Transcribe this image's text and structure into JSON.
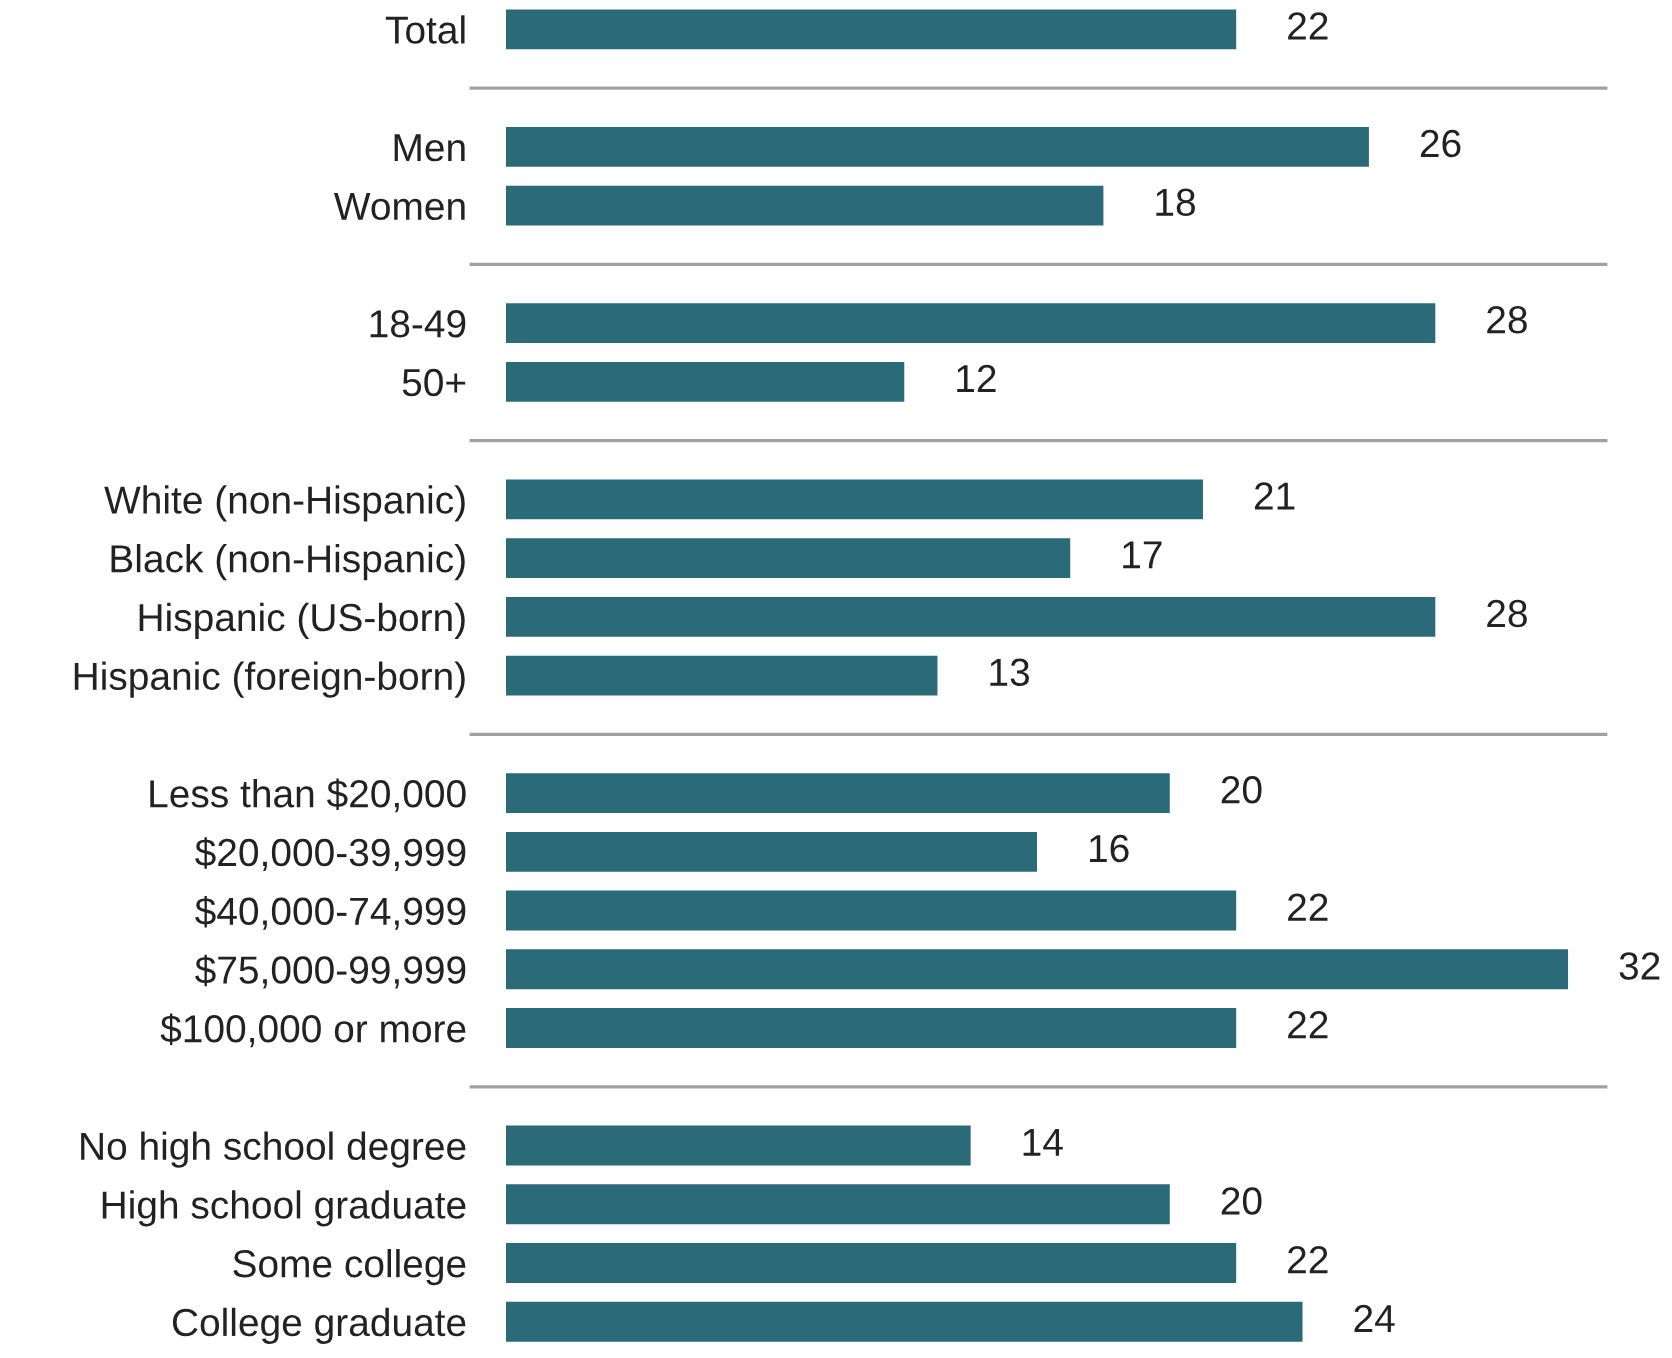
{
  "chart_data": {
    "type": "bar",
    "orientation": "horizontal",
    "categories": [
      "Total",
      null,
      "Men",
      "Women",
      null,
      "18-49",
      "50+",
      null,
      "White (non-Hispanic)",
      "Black (non-Hispanic)",
      "Hispanic (US-born)",
      "Hispanic (foreign-born)",
      null,
      "Less than $20,000",
      "$20,000-39,999",
      "$40,000-74,999",
      "$75,000-99,999",
      "$100,000 or more",
      null,
      "No high school degree",
      "High school graduate",
      "Some college",
      "College graduate"
    ],
    "values": [
      22,
      null,
      26,
      18,
      null,
      28,
      12,
      null,
      21,
      17,
      28,
      13,
      null,
      20,
      16,
      22,
      32,
      22,
      null,
      14,
      20,
      22,
      24
    ],
    "color": "#2b6a78",
    "data_labels": true,
    "grid": false,
    "legend": false
  }
}
